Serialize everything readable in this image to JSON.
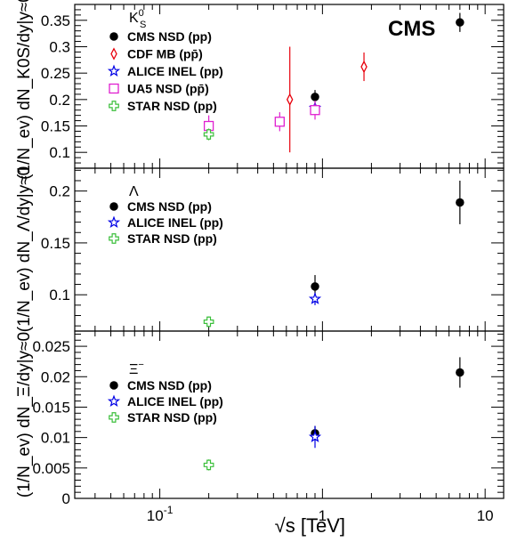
{
  "chart_data": {
    "type": "scatter",
    "logo": "CMS",
    "xlabel": "√s  [TeV]",
    "xscale": "log",
    "xlim": [
      0.03,
      13
    ],
    "x_ticks": [
      {
        "value": 0.1,
        "label": "10",
        "exp": "-1"
      },
      {
        "value": 1,
        "label": "1",
        "exp": ""
      },
      {
        "value": 10,
        "label": "10",
        "exp": ""
      }
    ],
    "panels": [
      {
        "id": "kshort",
        "particle": "K",
        "particle_sup": "0",
        "particle_sub": "S",
        "ylabel": "(1/N_ev) dN_K0S/dy|y≈0",
        "ylim": [
          0.07,
          0.38
        ],
        "y_ticks": [
          {
            "value": 0.1,
            "label": "0.1"
          },
          {
            "value": 0.15,
            "label": "0.15"
          },
          {
            "value": 0.2,
            "label": "0.2"
          },
          {
            "value": 0.25,
            "label": "0.25"
          },
          {
            "value": 0.3,
            "label": "0.3"
          },
          {
            "value": 0.35,
            "label": "0.35"
          }
        ],
        "series": [
          {
            "name": "CMS NSD (pp)",
            "marker": "circle",
            "color": "#000000",
            "points": [
              {
                "x": 0.9,
                "y": 0.205,
                "err": 0.013
              },
              {
                "x": 7.0,
                "y": 0.346,
                "err": 0.018
              }
            ]
          },
          {
            "name": "CDF MB (pp̄)",
            "marker": "diamond",
            "color": "#e8000b",
            "points": [
              {
                "x": 0.63,
                "y": 0.2,
                "err": 0.1
              },
              {
                "x": 1.8,
                "y": 0.262,
                "err": 0.027
              }
            ]
          },
          {
            "name": "ALICE INEL (pp)",
            "marker": "star",
            "color": "#0000e6",
            "points": [
              {
                "x": 0.9,
                "y": 0.184,
                "err": 0.009
              }
            ]
          },
          {
            "name": "UA5 NSD (pp̄)",
            "marker": "square",
            "color": "#e020d0",
            "points": [
              {
                "x": 0.2,
                "y": 0.15,
                "err": 0.02
              },
              {
                "x": 0.546,
                "y": 0.158,
                "err": 0.018
              },
              {
                "x": 0.9,
                "y": 0.18,
                "err": 0.018
              }
            ]
          },
          {
            "name": "STAR NSD (pp)",
            "marker": "cross",
            "color": "#3bbf3b",
            "points": [
              {
                "x": 0.2,
                "y": 0.134,
                "err": 0.011
              }
            ]
          }
        ]
      },
      {
        "id": "lambda",
        "particle": "Λ",
        "particle_sup": "",
        "particle_sub": "",
        "ylabel": "(1/N_ev) dN_Λ/dy|y≈0",
        "ylim": [
          0.065,
          0.222
        ],
        "y_ticks": [
          {
            "value": 0.1,
            "label": "0.1"
          },
          {
            "value": 0.15,
            "label": "0.15"
          },
          {
            "value": 0.2,
            "label": "0.2"
          }
        ],
        "series": [
          {
            "name": "CMS NSD (pp)",
            "marker": "circle",
            "color": "#000000",
            "points": [
              {
                "x": 0.9,
                "y": 0.108,
                "err": 0.011
              },
              {
                "x": 7.0,
                "y": 0.189,
                "err": 0.021
              }
            ]
          },
          {
            "name": "ALICE INEL (pp)",
            "marker": "star",
            "color": "#0000e6",
            "points": [
              {
                "x": 0.9,
                "y": 0.096,
                "err": 0.006
              }
            ]
          },
          {
            "name": "STAR NSD (pp)",
            "marker": "cross",
            "color": "#3bbf3b",
            "points": [
              {
                "x": 0.2,
                "y": 0.074,
                "err": 0.005
              }
            ]
          }
        ]
      },
      {
        "id": "xi",
        "particle": "Ξ",
        "particle_sup": "−",
        "particle_sub": "",
        "ylabel": "(1/N_ev) dN_Ξ/dy|y≈0",
        "ylim": [
          0,
          0.0275
        ],
        "y_ticks": [
          {
            "value": 0,
            "label": "0"
          },
          {
            "value": 0.005,
            "label": "0.005"
          },
          {
            "value": 0.01,
            "label": "0.01"
          },
          {
            "value": 0.015,
            "label": "0.015"
          },
          {
            "value": 0.02,
            "label": "0.02"
          },
          {
            "value": 0.025,
            "label": "0.025"
          }
        ],
        "series": [
          {
            "name": "CMS NSD (pp)",
            "marker": "circle",
            "color": "#000000",
            "points": [
              {
                "x": 0.9,
                "y": 0.0107,
                "err": 0.0012
              },
              {
                "x": 7.0,
                "y": 0.0207,
                "err": 0.0025
              }
            ]
          },
          {
            "name": "ALICE INEL (pp)",
            "marker": "star",
            "color": "#0000e6",
            "points": [
              {
                "x": 0.9,
                "y": 0.0101,
                "err": 0.0018
              }
            ]
          },
          {
            "name": "STAR NSD (pp)",
            "marker": "cross",
            "color": "#3bbf3b",
            "points": [
              {
                "x": 0.2,
                "y": 0.0055,
                "err": 0.0009
              }
            ]
          }
        ]
      }
    ]
  }
}
